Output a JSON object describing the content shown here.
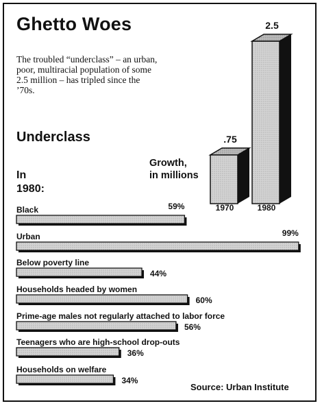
{
  "title": "Ghetto Woes",
  "intro": "The troubled “underclass” – an urban, poor, multiracial population of some 2.5 million – has tripled since the ’70s.",
  "subtitle": "Underclass",
  "in_label": "In\n1980:",
  "growth_label": "Growth,\nin millions",
  "source": "Source: Urban Institute",
  "colors": {
    "ink": "#111111",
    "bar_fill": "#d4d4d4",
    "paper": "#ffffff"
  },
  "chart_data": [
    {
      "type": "bar",
      "orientation": "vertical",
      "categories": [
        "1970",
        "1980"
      ],
      "values": [
        0.75,
        2.5
      ],
      "value_labels": [
        ".75",
        "2.5"
      ],
      "ylabel": "Growth, in millions",
      "style": "3d"
    },
    {
      "type": "bar",
      "orientation": "horizontal",
      "categories": [
        "Black",
        "Urban",
        "Below poverty line",
        "Households headed by women",
        "Prime-age males not regularly attached to labor force",
        "Teenagers who are high-school drop-outs",
        "Households on welfare"
      ],
      "values": [
        59,
        99,
        44,
        60,
        56,
        36,
        34
      ],
      "value_labels": [
        "59%",
        "99%",
        "44%",
        "60%",
        "56%",
        "36%",
        "34%"
      ],
      "xlim": [
        0,
        100
      ],
      "label_position": [
        "above",
        "above",
        "right",
        "right",
        "right",
        "right",
        "right"
      ]
    }
  ]
}
